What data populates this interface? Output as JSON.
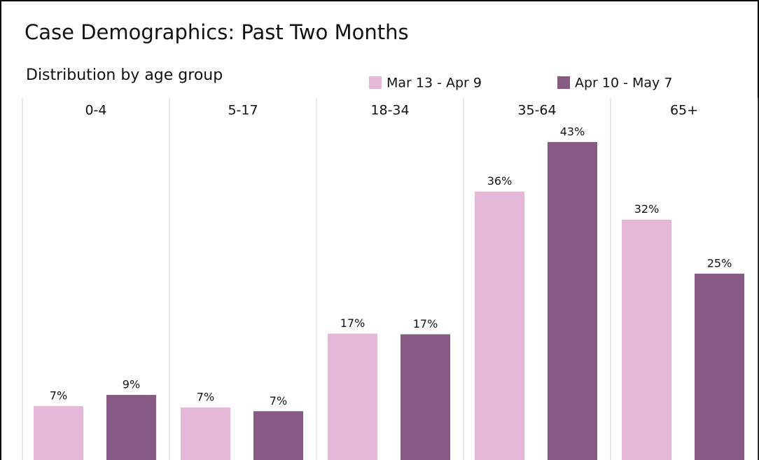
{
  "chart_data": {
    "type": "bar",
    "title": "Case Demographics: Past Two Months",
    "subtitle": "Distribution by age group",
    "categories": [
      "0-4",
      "5-17",
      "18-34",
      "35-64",
      "65+"
    ],
    "series": [
      {
        "name": "Mar 13 - Apr 9",
        "color": "#e6b8d7",
        "values": [
          7.3,
          7.1,
          17.1,
          36.3,
          32.5
        ],
        "value_labels": [
          "7%",
          "7%",
          "17%",
          "36%",
          "32%"
        ]
      },
      {
        "name": "Apr 10 - May 7",
        "color": "#875a86",
        "values": [
          8.8,
          6.6,
          17.0,
          43.0,
          25.2
        ],
        "value_labels": [
          "9%",
          "7%",
          "17%",
          "43%",
          "25%"
        ]
      }
    ],
    "ylim": [
      0,
      48
    ],
    "legend": "top"
  }
}
